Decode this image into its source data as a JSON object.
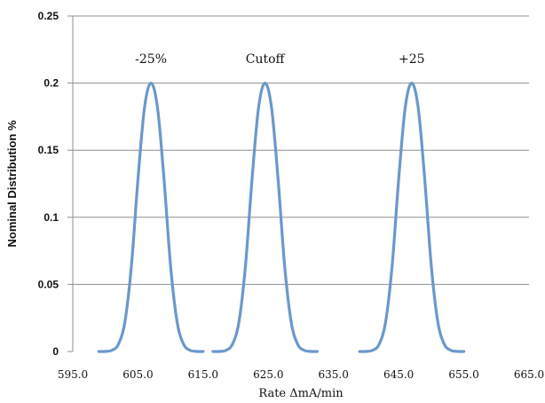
{
  "chart_data": {
    "type": "line",
    "title": "",
    "xlabel": "Rate ΔmA/min",
    "ylabel": "Nominal Distribution %",
    "xlim": [
      595.0,
      665.0
    ],
    "ylim": [
      0,
      0.25
    ],
    "x_ticks": [
      "595.0",
      "605.0",
      "615.0",
      "625.0",
      "635.0",
      "645.0",
      "655.0",
      "665.0"
    ],
    "y_ticks": [
      "0",
      "0.05",
      "0.1",
      "0.15",
      "0.2",
      "0.25"
    ],
    "grid": true,
    "legend": "none",
    "colors": {
      "series": "#6b98cb",
      "grid": "#8f8f8f",
      "text": "#111111"
    },
    "annotations": [
      {
        "text": "-25%",
        "x": 607.0,
        "y": 0.215
      },
      {
        "text": "Cutoff",
        "x": 624.5,
        "y": 0.215
      },
      {
        "text": "+25",
        "x": 647.0,
        "y": 0.215
      }
    ],
    "series": [
      {
        "x": [
          599.0,
          600.0,
          601.0,
          602.0,
          603.0,
          604.0,
          605.0,
          606.0,
          607.0,
          608.0,
          609.0,
          610.0,
          611.0,
          612.0,
          613.0,
          614.0,
          615.0
        ],
        "y": [
          0,
          0.0001,
          0.0009,
          0.0054,
          0.0222,
          0.0641,
          0.1283,
          0.1816,
          0.2,
          0.1816,
          0.1283,
          0.0641,
          0.0222,
          0.0054,
          0.0009,
          0.0001,
          0
        ]
      },
      {
        "x": [
          616.5,
          617.5,
          618.5,
          619.5,
          620.5,
          621.5,
          622.5,
          623.5,
          624.5,
          625.5,
          626.5,
          627.5,
          628.5,
          629.5,
          630.5,
          631.5,
          632.5
        ],
        "y": [
          0,
          0.0001,
          0.0009,
          0.0054,
          0.0222,
          0.0641,
          0.1283,
          0.1816,
          0.2,
          0.1816,
          0.1283,
          0.0641,
          0.0222,
          0.0054,
          0.0009,
          0.0001,
          0
        ]
      },
      {
        "x": [
          639.0,
          640.0,
          641.0,
          642.0,
          643.0,
          644.0,
          645.0,
          646.0,
          647.0,
          648.0,
          649.0,
          650.0,
          651.0,
          652.0,
          653.0,
          654.0,
          655.0
        ],
        "y": [
          0,
          0.0001,
          0.0009,
          0.0054,
          0.0222,
          0.0641,
          0.1283,
          0.1816,
          0.2,
          0.1816,
          0.1283,
          0.0641,
          0.0222,
          0.0054,
          0.0009,
          0.0001,
          0
        ]
      }
    ]
  }
}
